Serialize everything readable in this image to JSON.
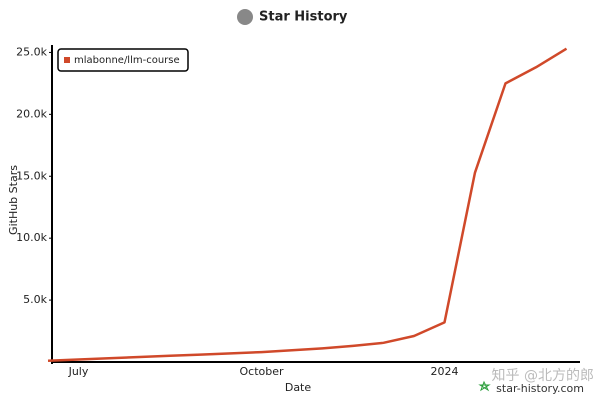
{
  "chart_data": {
    "type": "line",
    "title": "Star History",
    "x_label": "Date",
    "y_label": "GitHub Stars",
    "categories": [
      null,
      "July",
      null,
      null,
      null,
      null,
      null,
      "October",
      null,
      null,
      null,
      null,
      null,
      "2024",
      null,
      null,
      null,
      null
    ],
    "series": [
      {
        "name": "mlabonne/llm-course",
        "color": "#d0492a",
        "values": [
          100,
          200,
          300,
          400,
          500,
          600,
          700,
          800,
          950,
          1100,
          1300,
          1550,
          2100,
          3200,
          15300,
          22500,
          23800,
          25300
        ]
      }
    ],
    "ylim": [
      0,
      25600
    ],
    "yticks": [
      {
        "value": 5000,
        "label": "5.0k"
      },
      {
        "value": 10000,
        "label": "10.0k"
      },
      {
        "value": 15000,
        "label": "15.0k"
      },
      {
        "value": 20000,
        "label": "20.0k"
      },
      {
        "value": 25000,
        "label": "25.0k"
      }
    ],
    "legend": "top-left",
    "watermark": "知乎 @北方的郎",
    "credit": "star-history.com"
  }
}
